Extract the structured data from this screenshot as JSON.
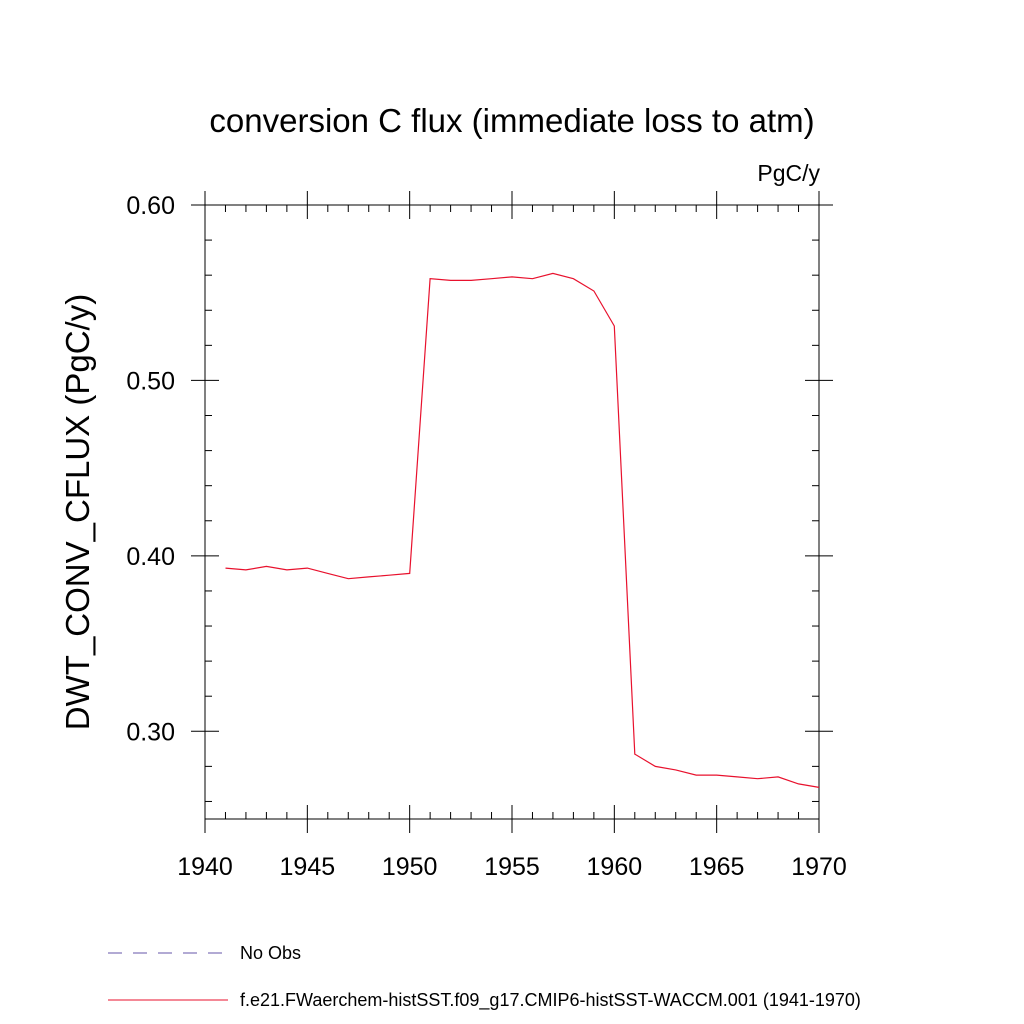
{
  "chart_data": {
    "type": "line",
    "title": "conversion C flux (immediate loss to atm)",
    "units_label": "PgC/y",
    "xlabel": "",
    "ylabel": "DWT_CONV_CFLUX  (PgC/y)",
    "xlim": [
      1940,
      1970
    ],
    "ylim": [
      0.25,
      0.6
    ],
    "x_ticks": [
      1940,
      1945,
      1950,
      1955,
      1960,
      1965,
      1970
    ],
    "x_tick_labels": [
      "1940",
      "1945",
      "1950",
      "1955",
      "1960",
      "1965",
      "1970"
    ],
    "y_ticks": [
      0.3,
      0.4,
      0.5,
      0.6
    ],
    "y_tick_labels": [
      "0.30",
      "0.40",
      "0.50",
      "0.60"
    ],
    "grid": false,
    "legend_position": "bottom-left",
    "series": [
      {
        "name": "No Obs",
        "color": "#6655aa",
        "style": "dashed",
        "x": [],
        "values": []
      },
      {
        "name": "f.e21.FWaerchem-histSST.f09_g17.CMIP6-histSST-WACCM.001 (1941-1970)",
        "color": "#e8112d",
        "style": "solid",
        "x": [
          1941,
          1942,
          1943,
          1944,
          1945,
          1946,
          1947,
          1948,
          1949,
          1950,
          1951,
          1952,
          1953,
          1954,
          1955,
          1956,
          1957,
          1958,
          1959,
          1960,
          1961,
          1962,
          1963,
          1964,
          1965,
          1966,
          1967,
          1968,
          1969,
          1970
        ],
        "values": [
          0.393,
          0.392,
          0.394,
          0.392,
          0.393,
          0.39,
          0.387,
          0.388,
          0.389,
          0.39,
          0.558,
          0.557,
          0.557,
          0.558,
          0.559,
          0.558,
          0.561,
          0.558,
          0.551,
          0.531,
          0.287,
          0.28,
          0.278,
          0.275,
          0.275,
          0.274,
          0.273,
          0.274,
          0.27,
          0.268
        ]
      }
    ]
  }
}
